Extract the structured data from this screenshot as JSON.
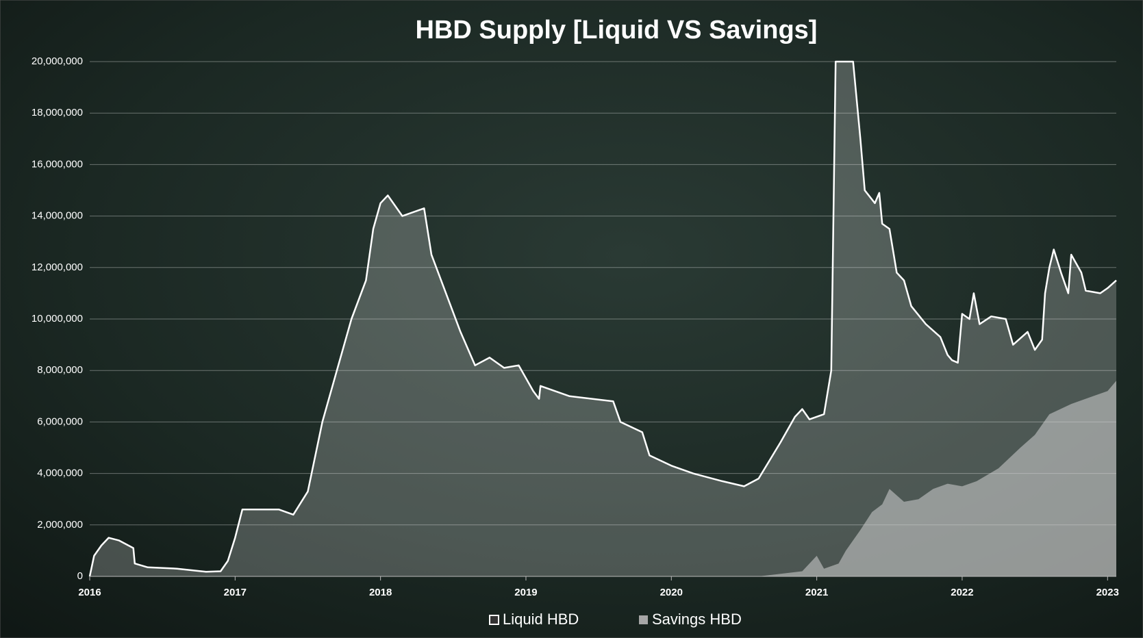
{
  "chart_data": {
    "type": "area",
    "title": "HBD Supply [Liquid VS Savings]",
    "xlim": [
      2016,
      2023.06
    ],
    "xticks": [
      2016,
      2017,
      2018,
      2019,
      2020,
      2021,
      2022,
      2023
    ],
    "ylim": [
      0,
      20000000
    ],
    "yticks": [
      0,
      {
        "value": 2000000,
        "label": "2,000,000"
      },
      {
        "value": 4000000,
        "label": "4,000,000"
      },
      {
        "value": 6000000,
        "label": "6,000,000"
      },
      {
        "value": 8000000,
        "label": "8,000,000"
      },
      {
        "value": 10000000,
        "label": "10,000,000"
      },
      {
        "value": 12000000,
        "label": "12,000,000"
      },
      {
        "value": 14000000,
        "label": "14,000,000"
      },
      {
        "value": 16000000,
        "label": "16,000,000"
      },
      {
        "value": 18000000,
        "label": "18,000,000"
      },
      {
        "value": 20000000,
        "label": "20,000,000"
      }
    ],
    "grid": true,
    "legend": "bottom",
    "series": [
      {
        "name": "Liquid HBD",
        "color": "#ffffff",
        "x": [
          2016.0,
          2016.03,
          2016.08,
          2016.13,
          2016.2,
          2016.3,
          2016.31,
          2016.4,
          2016.6,
          2016.8,
          2016.9,
          2016.95,
          2017.0,
          2017.05,
          2017.15,
          2017.3,
          2017.4,
          2017.5,
          2017.6,
          2017.7,
          2017.8,
          2017.9,
          2017.95,
          2018.0,
          2018.05,
          2018.15,
          2018.3,
          2018.35,
          2018.45,
          2018.55,
          2018.65,
          2018.75,
          2018.85,
          2018.95,
          2019.05,
          2019.09,
          2019.1,
          2019.3,
          2019.6,
          2019.65,
          2019.8,
          2019.85,
          2020.0,
          2020.15,
          2020.35,
          2020.5,
          2020.6,
          2020.75,
          2020.85,
          2020.9,
          2020.95,
          2021.05,
          2021.1,
          2021.13,
          2021.25,
          2021.3,
          2021.33,
          2021.4,
          2021.43,
          2021.45,
          2021.5,
          2021.55,
          2021.6,
          2021.65,
          2021.75,
          2021.85,
          2021.9,
          2021.93,
          2021.97,
          2022.0,
          2022.05,
          2022.08,
          2022.12,
          2022.2,
          2022.3,
          2022.35,
          2022.45,
          2022.5,
          2022.55,
          2022.57,
          2022.6,
          2022.63,
          2022.68,
          2022.73,
          2022.75,
          2022.82,
          2022.85,
          2022.95,
          2023.0,
          2023.06
        ],
        "values": [
          0,
          800000,
          1200000,
          1500000,
          1400000,
          1100000,
          500000,
          350000,
          300000,
          180000,
          200000,
          600000,
          1500000,
          2600000,
          2600000,
          2600000,
          2400000,
          3300000,
          6000000,
          8000000,
          10000000,
          11500000,
          13500000,
          14500000,
          14800000,
          14000000,
          14300000,
          12500000,
          11000000,
          9500000,
          8200000,
          8500000,
          8100000,
          8200000,
          7200000,
          6900000,
          7400000,
          7000000,
          6800000,
          6000000,
          5600000,
          4700000,
          4300000,
          4000000,
          3700000,
          3500000,
          3800000,
          5200000,
          6200000,
          6500000,
          6100000,
          6300000,
          8000000,
          20000000,
          20000000,
          17000000,
          15000000,
          14500000,
          14900000,
          13700000,
          13500000,
          11800000,
          11500000,
          10500000,
          9800000,
          9300000,
          8600000,
          8400000,
          8300000,
          10200000,
          10000000,
          11000000,
          9800000,
          10100000,
          10000000,
          9000000,
          9500000,
          8800000,
          9200000,
          11000000,
          12000000,
          12700000,
          11800000,
          11000000,
          12500000,
          11800000,
          11100000,
          11000000,
          11200000,
          11500000
        ]
      },
      {
        "name": "Savings HBD",
        "color": "#a6a6a6",
        "x": [
          2016.0,
          2020.6,
          2020.9,
          2021.0,
          2021.05,
          2021.15,
          2021.2,
          2021.3,
          2021.38,
          2021.45,
          2021.5,
          2021.6,
          2021.7,
          2021.8,
          2021.9,
          2022.0,
          2022.1,
          2022.25,
          2022.4,
          2022.5,
          2022.6,
          2022.75,
          2022.9,
          2023.0,
          2023.06
        ],
        "values": [
          0,
          0,
          200000,
          800000,
          300000,
          500000,
          1000000,
          1800000,
          2500000,
          2800000,
          3400000,
          2900000,
          3000000,
          3400000,
          3600000,
          3500000,
          3700000,
          4200000,
          5000000,
          5500000,
          6300000,
          6700000,
          7000000,
          7200000,
          7600000
        ]
      }
    ]
  }
}
